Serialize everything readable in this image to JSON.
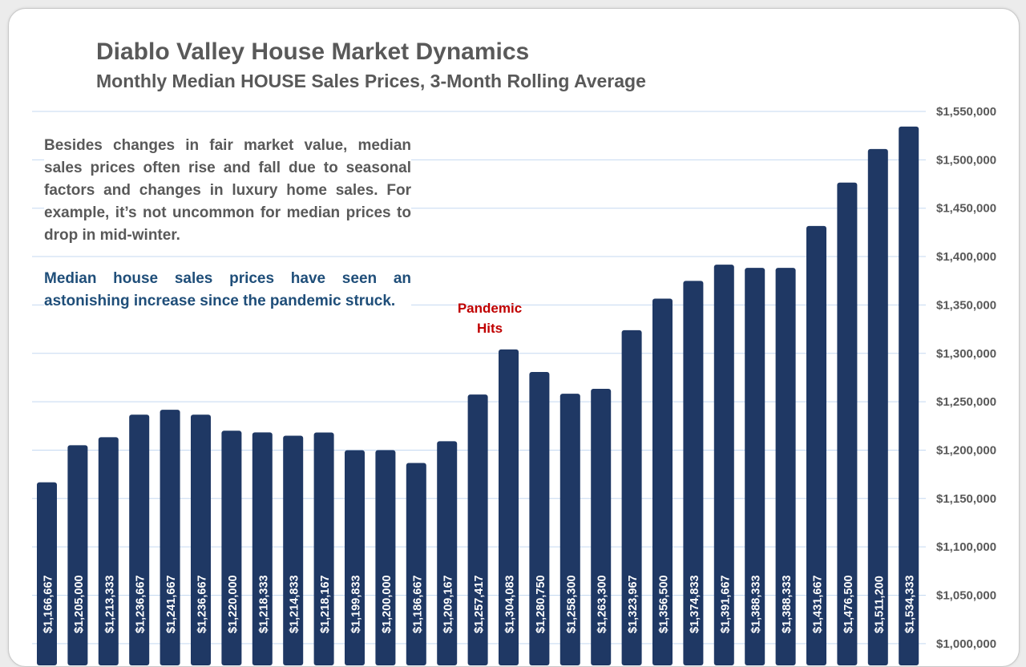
{
  "chart_data": {
    "type": "bar",
    "title": "Diablo Valley House Market Dynamics",
    "subtitle": "Monthly Median HOUSE Sales Prices, 3-Month Rolling Average",
    "y_axis_position": "right",
    "ylim": [
      1000000,
      1550000
    ],
    "yticks": [
      "$1,000,000",
      "$1,050,000",
      "$1,100,000",
      "$1,150,000",
      "$1,200,000",
      "$1,250,000",
      "$1,300,000",
      "$1,350,000",
      "$1,400,000",
      "$1,450,000",
      "$1,500,000",
      "$1,550,000"
    ],
    "grid": true,
    "values": [
      1166667,
      1205000,
      1213333,
      1236667,
      1241667,
      1236667,
      1220000,
      1218333,
      1214833,
      1218167,
      1199833,
      1200000,
      1186667,
      1209167,
      1257417,
      1304083,
      1280750,
      1258300,
      1263300,
      1323967,
      1356500,
      1374833,
      1391667,
      1388333,
      1388333,
      1431667,
      1476500,
      1511200,
      1534333
    ],
    "data_labels": [
      "$1,166,667",
      "$1,205,000",
      "$1,213,333",
      "$1,236,667",
      "$1,241,667",
      "$1,236,667",
      "$1,220,000",
      "$1,218,333",
      "$1,214,833",
      "$1,218,167",
      "$1,199,833",
      "$1,200,000",
      "$1,186,667",
      "$1,209,167",
      "$1,257,417",
      "$1,304,083",
      "$1,280,750",
      "$1,258,300",
      "$1,263,300",
      "$1,323,967",
      "$1,356,500",
      "$1,374,833",
      "$1,391,667",
      "$1,388,333",
      "$1,388,333",
      "$1,431,667",
      "$1,476,500",
      "$1,511,200",
      "$1,534,333"
    ],
    "annotations": [
      {
        "text_line1": "Pandemic",
        "text_line2": "Hits",
        "at_bar_index": 15
      }
    ],
    "bar_color": "#1f3864",
    "grid_color": "#c5d9f1"
  },
  "notes": {
    "paragraph1": "Besides changes in fair market value, median sales prices often rise and fall due to seasonal factors and changes in luxury home sales. For example, it’s not uncommon for median prices to drop in mid-winter.",
    "paragraph2": "Median house sales prices have seen an astonishing increase since the pandemic struck."
  }
}
